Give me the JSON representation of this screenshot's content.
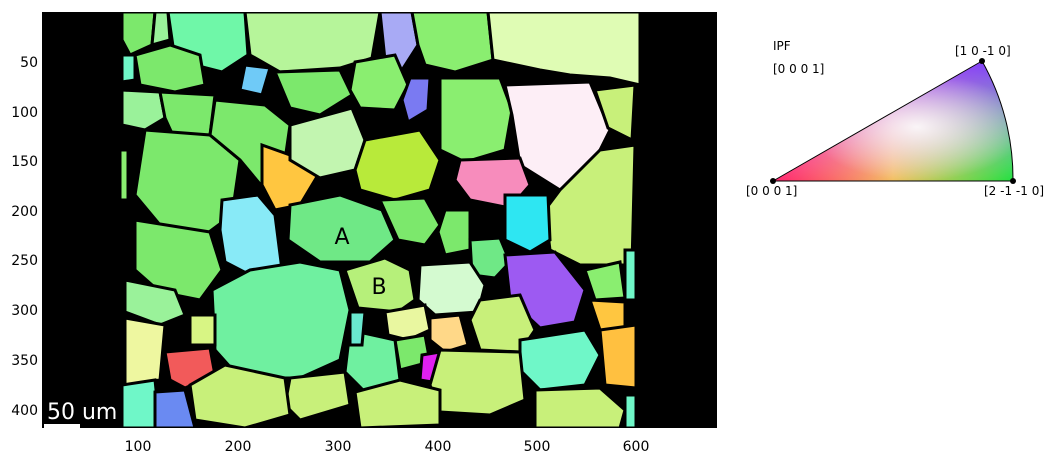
{
  "map": {
    "x_ticks": [
      "100",
      "200",
      "300",
      "400",
      "500",
      "600"
    ],
    "y_ticks": [
      "50",
      "100",
      "150",
      "200",
      "250",
      "300",
      "350",
      "400"
    ],
    "grain_labels": [
      "A",
      "B"
    ],
    "scale_bar": "50 um"
  },
  "legend": {
    "title": "IPF",
    "reference": "[0 0 0 1]",
    "corner_top": "[1 0 -1 0]",
    "corner_left": "[0 0 0 1]",
    "corner_right": "[2 -1 -1 0]"
  },
  "colors": {
    "background": "#000000",
    "green": "#7ce86c",
    "light_green": "#b6f59a",
    "yellow_green": "#c8f07a",
    "mint": "#6ff7a8",
    "pink": "#f78cbc",
    "cyan": "#2ee6f2",
    "purple": "#9d5af2",
    "orange": "#ffc640",
    "red": "#f25a5a",
    "blue": "#6a8af2"
  }
}
